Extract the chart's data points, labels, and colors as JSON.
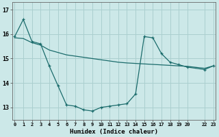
{
  "xlabel": "Humidex (Indice chaleur)",
  "bg_color": "#cce8e8",
  "grid_color": "#aacfcf",
  "line_color": "#1a6b6b",
  "series1_x": [
    0,
    1,
    2,
    3,
    4,
    5,
    6,
    7,
    8,
    9,
    10,
    11,
    12,
    13,
    14,
    15,
    16,
    17,
    18,
    19,
    20,
    22,
    23
  ],
  "series1_y": [
    15.9,
    16.6,
    15.7,
    15.6,
    14.7,
    13.9,
    13.1,
    13.05,
    12.9,
    12.85,
    13.0,
    13.05,
    13.1,
    13.15,
    13.55,
    15.9,
    15.85,
    15.2,
    14.85,
    14.75,
    14.65,
    14.55,
    14.7
  ],
  "series2_x": [
    0,
    1,
    2,
    3,
    4,
    5,
    6,
    7,
    8,
    9,
    10,
    11,
    12,
    13,
    14,
    15,
    16,
    17,
    18,
    19,
    20,
    22,
    23
  ],
  "series2_y": [
    15.85,
    15.82,
    15.65,
    15.55,
    15.35,
    15.25,
    15.15,
    15.1,
    15.05,
    15.0,
    14.95,
    14.9,
    14.85,
    14.82,
    14.8,
    14.78,
    14.76,
    14.74,
    14.72,
    14.7,
    14.68,
    14.6,
    14.7
  ],
  "xticks": [
    0,
    1,
    2,
    3,
    4,
    5,
    6,
    7,
    8,
    9,
    10,
    11,
    12,
    13,
    14,
    15,
    16,
    17,
    18,
    19,
    20,
    22,
    23
  ],
  "xlabels": [
    "0",
    "1",
    "2",
    "3",
    "4",
    "5",
    "6",
    "7",
    "8",
    "9",
    "10",
    "11",
    "12",
    "13",
    "14",
    "15",
    "16",
    "17",
    "18",
    "19",
    "20",
    "22",
    "23"
  ],
  "ylim": [
    12.5,
    17.3
  ],
  "yticks": [
    13,
    14,
    15,
    16,
    17
  ],
  "xlim": [
    -0.3,
    23.3
  ]
}
